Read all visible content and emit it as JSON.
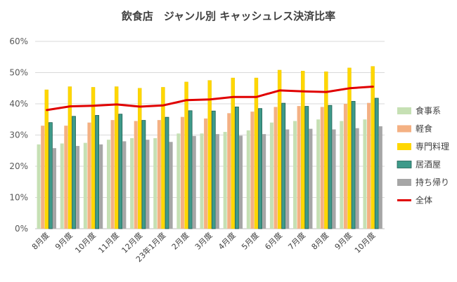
{
  "chart_data": {
    "type": "bar",
    "title": "飲食店　ジャンル別 キャッシュレス決済比率",
    "xlabel": "",
    "ylabel": "",
    "ylim": [
      0,
      60
    ],
    "yticks": [
      0,
      10,
      20,
      30,
      40,
      50,
      60
    ],
    "ytick_labels": [
      "0%",
      "10%",
      "20%",
      "30%",
      "40%",
      "50%",
      "60%"
    ],
    "grid": true,
    "legend_position": "right",
    "categories": [
      "8月度",
      "9月度",
      "10月度",
      "11月度",
      "12月度",
      "23年1月度",
      "2月度",
      "3月度",
      "4月度",
      "5月度",
      "6月度",
      "7月度",
      "8月度",
      "9月度",
      "10月度"
    ],
    "series": [
      {
        "name": "食事系",
        "type": "bar",
        "color": "#c6e0b4",
        "values": [
          27,
          27.3,
          27.5,
          28.5,
          29,
          29,
          30.5,
          30.5,
          31,
          31.5,
          34,
          34.5,
          35,
          34.5,
          35
        ]
      },
      {
        "name": "軽食",
        "type": "bar",
        "color": "#f4b183",
        "values": [
          33,
          33,
          34,
          34.8,
          34.5,
          34.8,
          35.8,
          35.3,
          37,
          37.5,
          39,
          39.3,
          39,
          40,
          40.3
        ]
      },
      {
        "name": "専門料理",
        "type": "bar",
        "color": "#ffd700",
        "values": [
          44.5,
          45.5,
          45.3,
          45.5,
          45,
          45.3,
          47,
          47.5,
          48.3,
          48.3,
          50.8,
          50.5,
          50.3,
          51.5,
          52
        ]
      },
      {
        "name": "居酒屋",
        "type": "bar",
        "color": "#3e9a8a",
        "values": [
          34,
          36,
          36.3,
          36.7,
          34.7,
          35.7,
          37.8,
          37.7,
          39,
          38.5,
          40.2,
          39.2,
          39.5,
          40.8,
          41.8
        ]
      },
      {
        "name": "持ち帰り",
        "type": "bar",
        "color": "#a6a6a6",
        "values": [
          25.8,
          26.5,
          27,
          28,
          28.5,
          27.8,
          29.7,
          30.3,
          29.8,
          30.3,
          31.8,
          32,
          31.8,
          32.2,
          32.8
        ]
      },
      {
        "name": "全体",
        "type": "line",
        "color": "#e00000",
        "values": [
          38,
          39.2,
          39.4,
          39.8,
          39.1,
          39.5,
          41.2,
          41.4,
          42.2,
          42.2,
          44.3,
          44,
          43.8,
          45,
          45.5
        ]
      }
    ]
  }
}
